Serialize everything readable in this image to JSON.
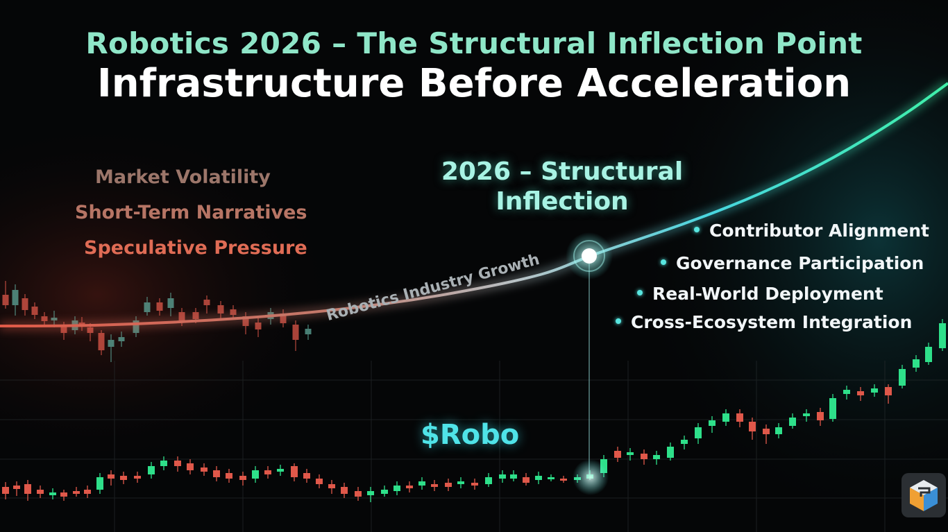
{
  "title": "Robotics 2026 – The Structural Inflection Point",
  "subtitle": "Infrastructure Before Acceleration",
  "left_labels": [
    "Market Volatility",
    "Short-Term Narratives",
    "Speculative Pressure"
  ],
  "inflection_label": [
    "2026 – Structural",
    "Inflection"
  ],
  "bullets": [
    "Contributor Alignment",
    "Governance Participation",
    "Real-World Deployment",
    "Cross-Ecosystem Integration"
  ],
  "curve_label": "Robotics Industry Growth",
  "token_label": "$Robo",
  "corner_icon": "cube-logo-icon",
  "colors": {
    "background": "#050607",
    "title_accent": "#8fe6c8",
    "candle_up": "#2ee08a",
    "candle_down": "#e0584a",
    "curve_start": "#e05a48",
    "curve_end": "#3ff0a8",
    "inflection_glow": "#58e6e0"
  },
  "chart_data": [
    {
      "type": "line",
      "series": [
        {
          "name": "Robotics Industry Growth",
          "values": [
            [
              0,
              470
            ],
            [
              100,
              470
            ],
            [
              200,
              467
            ],
            [
              300,
              462
            ],
            [
              400,
              455
            ],
            [
              500,
              445
            ],
            [
              600,
              432
            ],
            [
              700,
              414
            ],
            [
              760,
              401
            ],
            [
              800,
              390
            ],
            [
              849,
              369
            ],
            [
              900,
              352
            ],
            [
              1000,
              318
            ],
            [
              1100,
              278
            ],
            [
              1200,
              229
            ],
            [
              1300,
              168
            ],
            [
              1366,
              120
            ]
          ]
        }
      ],
      "inflection_point": [
        849,
        369
      ]
    },
    {
      "type": "candlestick",
      "name": "volatility",
      "candles": [
        [
          8,
          425,
          440,
          405,
          445
        ],
        [
          22,
          440,
          418,
          410,
          455
        ],
        [
          36,
          430,
          447,
          424,
          455
        ],
        [
          50,
          442,
          454,
          436,
          460
        ],
        [
          64,
          456,
          463,
          450,
          470
        ],
        [
          78,
          462,
          458,
          448,
          472
        ],
        [
          92,
          470,
          480,
          464,
          490
        ],
        [
          108,
          476,
          462,
          456,
          482
        ],
        [
          118,
          465,
          470,
          457,
          477
        ],
        [
          130,
          472,
          480,
          466,
          492
        ],
        [
          146,
          480,
          505,
          476,
          512
        ],
        [
          160,
          500,
          490,
          482,
          522
        ],
        [
          175,
          492,
          486,
          478,
          500
        ],
        [
          196,
          480,
          462,
          456,
          486
        ],
        [
          212,
          450,
          436,
          428,
          455
        ],
        [
          230,
          436,
          448,
          430,
          455
        ],
        [
          246,
          444,
          430,
          422,
          456
        ],
        [
          262,
          450,
          462,
          444,
          470
        ],
        [
          282,
          450,
          460,
          444,
          466
        ],
        [
          298,
          432,
          440,
          426,
          452
        ],
        [
          318,
          440,
          452,
          434,
          460
        ],
        [
          336,
          446,
          454,
          440,
          460
        ],
        [
          354,
          456,
          470,
          450,
          482
        ],
        [
          372,
          465,
          475,
          458,
          486
        ],
        [
          390,
          460,
          450,
          444,
          468
        ],
        [
          408,
          452,
          466,
          446,
          472
        ],
        [
          426,
          468,
          490,
          462,
          506
        ],
        [
          444,
          482,
          474,
          468,
          490
        ]
      ]
    },
    {
      "type": "candlestick",
      "name": "$Robo",
      "candles": [
        [
          8,
          702,
          712,
          695,
          720
        ],
        [
          24,
          700,
          705,
          694,
          715
        ],
        [
          40,
          698,
          712,
          692,
          722
        ],
        [
          58,
          706,
          712,
          700,
          718
        ],
        [
          76,
          714,
          710,
          704,
          720
        ],
        [
          92,
          710,
          716,
          706,
          722
        ],
        [
          110,
          708,
          712,
          702,
          716
        ],
        [
          126,
          706,
          712,
          700,
          718
        ],
        [
          144,
          706,
          688,
          682,
          712
        ],
        [
          160,
          684,
          690,
          678,
          700
        ],
        [
          178,
          686,
          692,
          680,
          698
        ],
        [
          198,
          686,
          690,
          680,
          696
        ],
        [
          218,
          684,
          672,
          666,
          690
        ],
        [
          236,
          672,
          664,
          658,
          678
        ],
        [
          256,
          664,
          672,
          658,
          680
        ],
        [
          274,
          668,
          678,
          662,
          684
        ],
        [
          294,
          674,
          680,
          668,
          686
        ],
        [
          312,
          678,
          688,
          672,
          694
        ],
        [
          330,
          682,
          690,
          676,
          696
        ],
        [
          350,
          686,
          692,
          680,
          700
        ],
        [
          368,
          690,
          678,
          672,
          696
        ],
        [
          386,
          678,
          684,
          672,
          690
        ],
        [
          404,
          680,
          676,
          670,
          686
        ],
        [
          424,
          672,
          688,
          668,
          694
        ],
        [
          442,
          682,
          690,
          676,
          696
        ],
        [
          460,
          690,
          698,
          684,
          704
        ],
        [
          478,
          698,
          704,
          692,
          712
        ],
        [
          496,
          702,
          712,
          696,
          718
        ],
        [
          516,
          708,
          716,
          702,
          722
        ],
        [
          534,
          714,
          708,
          702,
          724
        ],
        [
          554,
          712,
          706,
          700,
          716
        ],
        [
          572,
          708,
          700,
          694,
          714
        ],
        [
          590,
          700,
          704,
          694,
          710
        ],
        [
          608,
          700,
          694,
          688,
          706
        ],
        [
          626,
          698,
          702,
          692,
          708
        ],
        [
          646,
          696,
          702,
          690,
          708
        ],
        [
          664,
          698,
          694,
          688,
          704
        ],
        [
          684,
          696,
          700,
          690,
          706
        ],
        [
          704,
          698,
          688,
          682,
          702
        ],
        [
          724,
          690,
          684,
          678,
          696
        ],
        [
          740,
          690,
          684,
          678,
          694
        ],
        [
          758,
          688,
          696,
          682,
          700
        ],
        [
          776,
          692,
          686,
          680,
          698
        ],
        [
          794,
          690,
          688,
          684,
          694
        ],
        [
          812,
          690,
          692,
          686,
          696
        ],
        [
          832,
          692,
          688,
          684,
          696
        ],
        [
          850,
          690,
          684,
          678,
          692
        ],
        [
          870,
          682,
          662,
          656,
          688
        ],
        [
          890,
          650,
          660,
          644,
          666
        ],
        [
          908,
          656,
          652,
          646,
          664
        ],
        [
          928,
          654,
          662,
          648,
          670
        ],
        [
          946,
          662,
          656,
          650,
          670
        ],
        [
          966,
          660,
          644,
          638,
          664
        ],
        [
          986,
          640,
          634,
          628,
          648
        ],
        [
          1006,
          632,
          616,
          610,
          640
        ],
        [
          1026,
          614,
          606,
          600,
          624
        ],
        [
          1046,
          608,
          596,
          590,
          614
        ],
        [
          1066,
          596,
          608,
          590,
          616
        ],
        [
          1084,
          608,
          622,
          602,
          634
        ],
        [
          1104,
          618,
          626,
          612,
          640
        ],
        [
          1122,
          626,
          616,
          610,
          632
        ],
        [
          1142,
          614,
          602,
          596,
          618
        ],
        [
          1162,
          600,
          596,
          590,
          608
        ],
        [
          1182,
          594,
          606,
          588,
          614
        ],
        [
          1200,
          604,
          574,
          568,
          608
        ],
        [
          1220,
          568,
          562,
          556,
          576
        ],
        [
          1240,
          564,
          570,
          558,
          578
        ],
        [
          1260,
          566,
          560,
          554,
          572
        ],
        [
          1280,
          558,
          570,
          554,
          582
        ],
        [
          1300,
          556,
          532,
          526,
          560
        ],
        [
          1320,
          530,
          518,
          512,
          536
        ],
        [
          1338,
          522,
          500,
          494,
          526
        ],
        [
          1358,
          502,
          466,
          460,
          506
        ]
      ]
    }
  ]
}
